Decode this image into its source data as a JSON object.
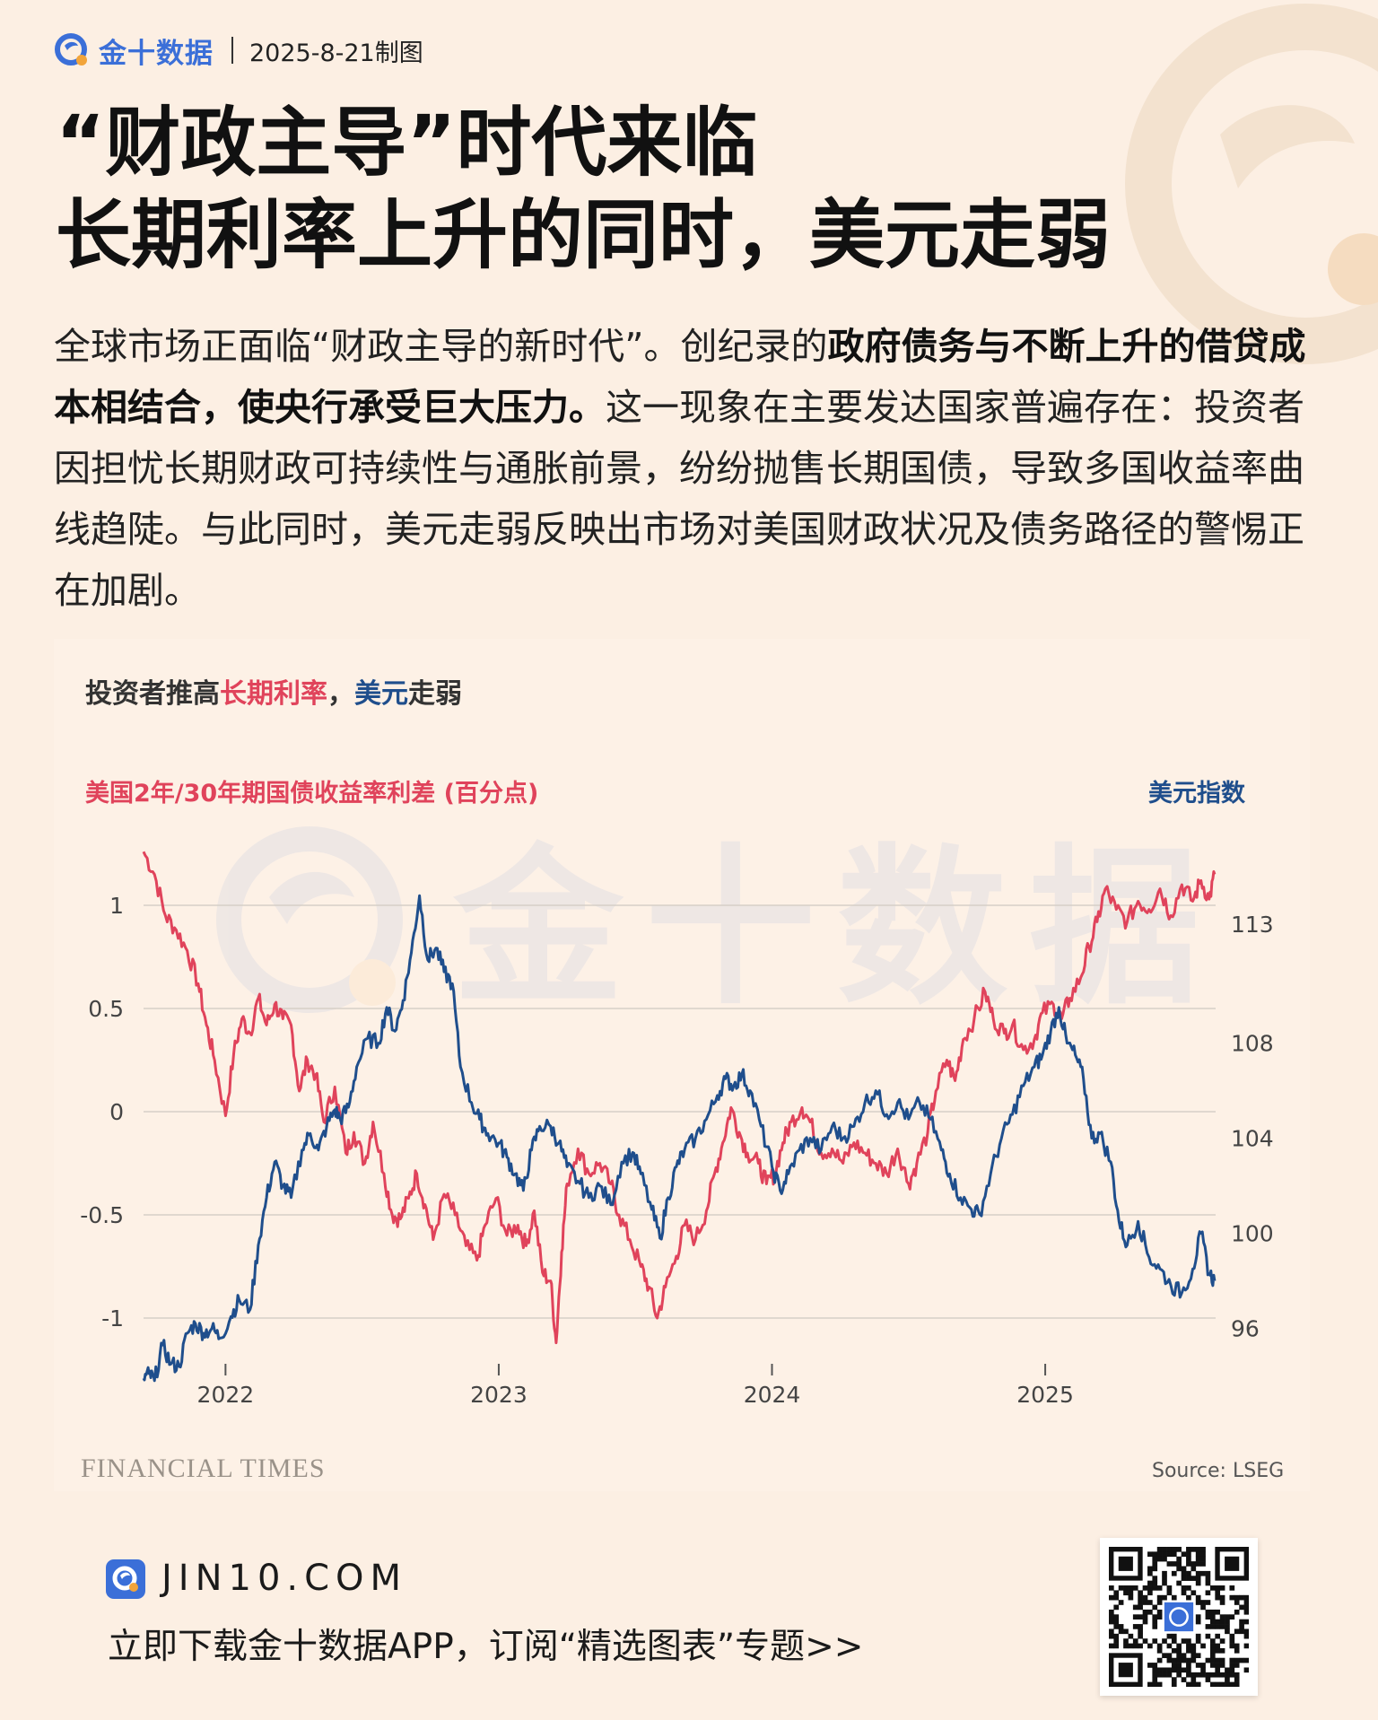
{
  "header": {
    "brand": "金十数据",
    "date": "2025-8-21制图"
  },
  "title": {
    "line1": "“财政主导”时代来临",
    "line2": "长期利率上升的同时，美元走弱"
  },
  "description": {
    "part1": "全球市场正面临“财政主导的新时代”。创纪录的",
    "bold": "政府债务与不断上升的借贷成本相结合，使央行承受巨大压力。",
    "part2": "这一现象在主要发达国家普遍存在：投资者因担忧长期财政可持续性与通胀前景，纷纷抛售长期国债，导致多国收益率曲线趋陡。与此同时，美元走弱反映出市场对美国财政状况及债务路径的警惕正在加剧。"
  },
  "chart_heading": {
    "prefix": "投资者推高",
    "red": "长期利率",
    "comma": "，",
    "blue": "美元",
    "suffix": "走弱"
  },
  "chart_data": {
    "type": "line",
    "title": "投资者推高长期利率，美元走弱",
    "ylabel_left": "美国2年/30年期国债收益率利差 (百分点)",
    "ylabel_right": "美元指数",
    "x_ticks": [
      "2022",
      "2023",
      "2024",
      "2025"
    ],
    "y_left_ticks": [
      "1",
      "0.5",
      "0",
      "-0.5",
      "-1"
    ],
    "y_right_ticks": [
      "113",
      "108",
      "104",
      "100",
      "96"
    ],
    "y_left_range": [
      -1.2,
      1.3
    ],
    "y_right_range": [
      94.7,
      116.4
    ],
    "x_range": [
      2021.7,
      2025.64
    ],
    "grid": true,
    "series": [
      {
        "name": "美国2年/30年期国债收益率利差 (百分点)",
        "axis": "left",
        "color": "#e0435b",
        "points": [
          [
            2021.7,
            1.26
          ],
          [
            2021.74,
            1.15
          ],
          [
            2021.78,
            0.95
          ],
          [
            2021.82,
            0.88
          ],
          [
            2021.86,
            0.78
          ],
          [
            2021.9,
            0.62
          ],
          [
            2021.93,
            0.42
          ],
          [
            2021.96,
            0.25
          ],
          [
            2022.0,
            -0.02
          ],
          [
            2022.03,
            0.28
          ],
          [
            2022.06,
            0.45
          ],
          [
            2022.09,
            0.38
          ],
          [
            2022.12,
            0.55
          ],
          [
            2022.15,
            0.42
          ],
          [
            2022.18,
            0.52
          ],
          [
            2022.21,
            0.45
          ],
          [
            2022.24,
            0.42
          ],
          [
            2022.27,
            0.1
          ],
          [
            2022.3,
            0.25
          ],
          [
            2022.33,
            0.18
          ],
          [
            2022.36,
            -0.05
          ],
          [
            2022.4,
            0.12
          ],
          [
            2022.44,
            -0.2
          ],
          [
            2022.47,
            -0.1
          ],
          [
            2022.51,
            -0.25
          ],
          [
            2022.54,
            -0.05
          ],
          [
            2022.58,
            -0.3
          ],
          [
            2022.61,
            -0.5
          ],
          [
            2022.64,
            -0.52
          ],
          [
            2022.67,
            -0.42
          ],
          [
            2022.7,
            -0.3
          ],
          [
            2022.73,
            -0.45
          ],
          [
            2022.76,
            -0.62
          ],
          [
            2022.8,
            -0.4
          ],
          [
            2022.84,
            -0.5
          ],
          [
            2022.88,
            -0.65
          ],
          [
            2022.92,
            -0.72
          ],
          [
            2022.95,
            -0.55
          ],
          [
            2022.99,
            -0.42
          ],
          [
            2023.03,
            -0.6
          ],
          [
            2023.07,
            -0.55
          ],
          [
            2023.1,
            -0.65
          ],
          [
            2023.13,
            -0.48
          ],
          [
            2023.16,
            -0.78
          ],
          [
            2023.19,
            -0.82
          ],
          [
            2023.21,
            -1.12
          ],
          [
            2023.23,
            -0.68
          ],
          [
            2023.25,
            -0.35
          ],
          [
            2023.29,
            -0.18
          ],
          [
            2023.33,
            -0.3
          ],
          [
            2023.37,
            -0.25
          ],
          [
            2023.41,
            -0.35
          ],
          [
            2023.44,
            -0.5
          ],
          [
            2023.48,
            -0.62
          ],
          [
            2023.52,
            -0.75
          ],
          [
            2023.55,
            -0.85
          ],
          [
            2023.58,
            -1.0
          ],
          [
            2023.61,
            -0.85
          ],
          [
            2023.65,
            -0.7
          ],
          [
            2023.68,
            -0.55
          ],
          [
            2023.72,
            -0.62
          ],
          [
            2023.76,
            -0.48
          ],
          [
            2023.79,
            -0.3
          ],
          [
            2023.82,
            -0.15
          ],
          [
            2023.85,
            0.02
          ],
          [
            2023.88,
            -0.1
          ],
          [
            2023.91,
            -0.2
          ],
          [
            2023.95,
            -0.25
          ],
          [
            2023.98,
            -0.35
          ],
          [
            2024.01,
            -0.3
          ],
          [
            2024.04,
            -0.15
          ],
          [
            2024.07,
            -0.05
          ],
          [
            2024.11,
            0.02
          ],
          [
            2024.14,
            -0.05
          ],
          [
            2024.18,
            -0.2
          ],
          [
            2024.22,
            -0.18
          ],
          [
            2024.26,
            -0.25
          ],
          [
            2024.3,
            -0.15
          ],
          [
            2024.34,
            -0.2
          ],
          [
            2024.38,
            -0.25
          ],
          [
            2024.42,
            -0.3
          ],
          [
            2024.46,
            -0.18
          ],
          [
            2024.5,
            -0.35
          ],
          [
            2024.53,
            -0.25
          ],
          [
            2024.57,
            -0.1
          ],
          [
            2024.6,
            0.1
          ],
          [
            2024.64,
            0.25
          ],
          [
            2024.67,
            0.15
          ],
          [
            2024.7,
            0.35
          ],
          [
            2024.74,
            0.45
          ],
          [
            2024.78,
            0.58
          ],
          [
            2024.81,
            0.45
          ],
          [
            2024.85,
            0.38
          ],
          [
            2024.88,
            0.42
          ],
          [
            2024.92,
            0.3
          ],
          [
            2024.96,
            0.35
          ],
          [
            2024.99,
            0.48
          ],
          [
            2025.03,
            0.52
          ],
          [
            2025.06,
            0.45
          ],
          [
            2025.09,
            0.55
          ],
          [
            2025.13,
            0.65
          ],
          [
            2025.16,
            0.8
          ],
          [
            2025.19,
            0.92
          ],
          [
            2025.22,
            1.08
          ],
          [
            2025.26,
            0.98
          ],
          [
            2025.3,
            0.92
          ],
          [
            2025.34,
            1.02
          ],
          [
            2025.38,
            0.98
          ],
          [
            2025.42,
            1.08
          ],
          [
            2025.46,
            0.95
          ],
          [
            2025.5,
            1.1
          ],
          [
            2025.54,
            1.02
          ],
          [
            2025.57,
            1.12
          ],
          [
            2025.6,
            1.03
          ],
          [
            2025.62,
            1.15
          ]
        ]
      },
      {
        "name": "美元指数",
        "axis": "right",
        "color": "#1f4e8c",
        "points": [
          [
            2021.7,
            93.9
          ],
          [
            2021.72,
            94.1
          ],
          [
            2021.74,
            93.8
          ],
          [
            2021.77,
            95.3
          ],
          [
            2021.8,
            94.5
          ],
          [
            2021.83,
            94.4
          ],
          [
            2021.86,
            95.8
          ],
          [
            2021.89,
            96.2
          ],
          [
            2021.92,
            95.8
          ],
          [
            2021.95,
            96.0
          ],
          [
            2021.98,
            95.6
          ],
          [
            2022.02,
            96.5
          ],
          [
            2022.05,
            97.2
          ],
          [
            2022.09,
            96.8
          ],
          [
            2022.12,
            99.5
          ],
          [
            2022.15,
            101.5
          ],
          [
            2022.18,
            103.0
          ],
          [
            2022.21,
            102.0
          ],
          [
            2022.24,
            101.5
          ],
          [
            2022.28,
            103.5
          ],
          [
            2022.31,
            104.2
          ],
          [
            2022.34,
            103.5
          ],
          [
            2022.37,
            104.5
          ],
          [
            2022.4,
            105.2
          ],
          [
            2022.42,
            104.8
          ],
          [
            2022.45,
            105.3
          ],
          [
            2022.48,
            107.0
          ],
          [
            2022.52,
            108.2
          ],
          [
            2022.56,
            108.0
          ],
          [
            2022.59,
            109.5
          ],
          [
            2022.62,
            108.5
          ],
          [
            2022.65,
            109.8
          ],
          [
            2022.68,
            111.8
          ],
          [
            2022.71,
            114.2
          ],
          [
            2022.74,
            111.5
          ],
          [
            2022.77,
            112.0
          ],
          [
            2022.8,
            111.0
          ],
          [
            2022.83,
            110.5
          ],
          [
            2022.86,
            107.0
          ],
          [
            2022.9,
            105.5
          ],
          [
            2022.93,
            104.8
          ],
          [
            2022.96,
            104.2
          ],
          [
            2023.0,
            103.8
          ],
          [
            2023.03,
            103.2
          ],
          [
            2023.06,
            102.5
          ],
          [
            2023.09,
            101.8
          ],
          [
            2023.12,
            103.5
          ],
          [
            2023.15,
            104.5
          ],
          [
            2023.19,
            104.5
          ],
          [
            2023.22,
            103.8
          ],
          [
            2023.25,
            102.8
          ],
          [
            2023.29,
            102.2
          ],
          [
            2023.33,
            101.5
          ],
          [
            2023.37,
            102.0
          ],
          [
            2023.41,
            101.2
          ],
          [
            2023.45,
            103.0
          ],
          [
            2023.49,
            103.4
          ],
          [
            2023.52,
            102.5
          ],
          [
            2023.56,
            101.0
          ],
          [
            2023.59,
            99.8
          ],
          [
            2023.62,
            101.5
          ],
          [
            2023.65,
            102.8
          ],
          [
            2023.68,
            103.5
          ],
          [
            2023.72,
            104.0
          ],
          [
            2023.76,
            104.8
          ],
          [
            2023.8,
            105.8
          ],
          [
            2023.83,
            106.5
          ],
          [
            2023.86,
            106.2
          ],
          [
            2023.89,
            106.7
          ],
          [
            2023.92,
            106.0
          ],
          [
            2023.96,
            104.5
          ],
          [
            2024.0,
            102.8
          ],
          [
            2024.03,
            101.8
          ],
          [
            2024.06,
            102.5
          ],
          [
            2024.1,
            103.5
          ],
          [
            2024.14,
            104.0
          ],
          [
            2024.18,
            103.5
          ],
          [
            2024.22,
            104.5
          ],
          [
            2024.26,
            104.0
          ],
          [
            2024.3,
            104.5
          ],
          [
            2024.34,
            105.5
          ],
          [
            2024.38,
            106.0
          ],
          [
            2024.42,
            105.0
          ],
          [
            2024.46,
            105.5
          ],
          [
            2024.5,
            104.8
          ],
          [
            2024.54,
            105.5
          ],
          [
            2024.58,
            104.8
          ],
          [
            2024.62,
            103.5
          ],
          [
            2024.65,
            102.5
          ],
          [
            2024.69,
            101.5
          ],
          [
            2024.73,
            101.0
          ],
          [
            2024.76,
            100.8
          ],
          [
            2024.8,
            102.5
          ],
          [
            2024.84,
            104.0
          ],
          [
            2024.88,
            105.0
          ],
          [
            2024.92,
            106.2
          ],
          [
            2024.96,
            107.0
          ],
          [
            2024.99,
            107.5
          ],
          [
            2025.02,
            108.5
          ],
          [
            2025.05,
            109.5
          ],
          [
            2025.08,
            108.0
          ],
          [
            2025.11,
            107.5
          ],
          [
            2025.14,
            106.5
          ],
          [
            2025.17,
            104.0
          ],
          [
            2025.2,
            104.2
          ],
          [
            2025.24,
            103.0
          ],
          [
            2025.27,
            100.5
          ],
          [
            2025.3,
            99.5
          ],
          [
            2025.34,
            100.5
          ],
          [
            2025.38,
            99.0
          ],
          [
            2025.42,
            98.5
          ],
          [
            2025.46,
            97.8
          ],
          [
            2025.5,
            97.5
          ],
          [
            2025.54,
            98.5
          ],
          [
            2025.57,
            100.0
          ],
          [
            2025.6,
            98.3
          ],
          [
            2025.62,
            98.0
          ]
        ]
      }
    ],
    "source": "Source: LSEG",
    "publisher": "FINANCIAL TIMES"
  },
  "footer": {
    "domain": "JIN10.COM",
    "cta": "立即下载金十数据APP，订阅“精选图表”专题>>"
  },
  "colors": {
    "background": "#fcefe3",
    "brand_blue": "#3b6fd8",
    "spread_red": "#e0435b",
    "dxy_blue": "#1f4e8c"
  }
}
